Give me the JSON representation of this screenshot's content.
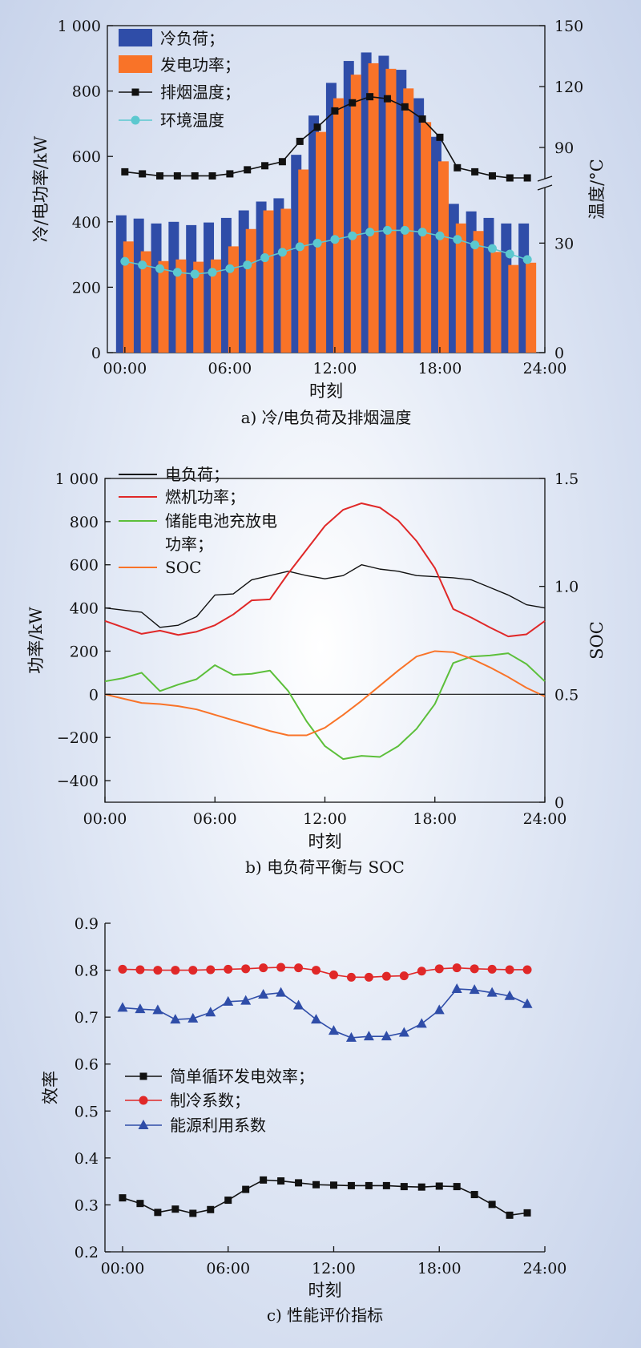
{
  "chart_data": [
    {
      "type": "bar",
      "caption": "a) 冷/电负荷及排烟温度",
      "xlabel": "时刻",
      "ylabel_left": "冷/电功率/kW",
      "ylabel_right": "温度/°C",
      "xlim": [
        -1,
        24
      ],
      "x_ticks": [
        0,
        6,
        12,
        18,
        24
      ],
      "x_tick_labels": [
        "00:00",
        "06:00",
        "12:00",
        "18:00",
        "24:00"
      ],
      "ylim_left": [
        0,
        1000
      ],
      "y_ticks_left": [
        0,
        200,
        400,
        600,
        800,
        1000
      ],
      "y_tick_labels_left": [
        "0",
        "200",
        "400",
        "600",
        "800",
        "1 000"
      ],
      "right_axis_broken": true,
      "right_axis_segments": [
        [
          0,
          45
        ],
        [
          75,
          150
        ]
      ],
      "y_ticks_right": [
        0,
        30,
        90,
        120,
        150
      ],
      "y_tick_labels_right": [
        "0",
        "30",
        "90",
        "120",
        "150"
      ],
      "hours": [
        0,
        1,
        2,
        3,
        4,
        5,
        6,
        7,
        8,
        9,
        10,
        11,
        12,
        13,
        14,
        15,
        16,
        17,
        18,
        19,
        20,
        21,
        22,
        23
      ],
      "series": [
        {
          "name": "冷负荷；",
          "kind": "bar",
          "axis": "left",
          "color": "#2f4da8",
          "values": [
            420,
            410,
            395,
            400,
            390,
            398,
            412,
            435,
            462,
            472,
            605,
            725,
            825,
            892,
            918,
            908,
            865,
            778,
            660,
            455,
            432,
            412,
            395,
            395
          ]
        },
        {
          "name": "发电功率；",
          "kind": "bar",
          "axis": "left",
          "color": "#f97328",
          "values": [
            340,
            310,
            280,
            285,
            278,
            285,
            325,
            378,
            435,
            440,
            560,
            675,
            778,
            850,
            885,
            868,
            808,
            705,
            585,
            395,
            372,
            308,
            268,
            275
          ]
        },
        {
          "name": "排烟温度；",
          "kind": "line",
          "marker": "square",
          "axis": "right",
          "color": "#111111",
          "values": [
            78,
            77,
            76,
            76,
            76,
            76,
            77,
            79,
            81,
            83,
            93,
            100,
            108,
            112,
            115,
            114,
            110,
            104,
            95,
            80,
            78,
            76,
            75,
            75
          ]
        },
        {
          "name": "环境温度",
          "kind": "line",
          "marker": "circle",
          "axis": "right",
          "color": "#5cc8cf",
          "values": [
            25,
            24,
            23,
            22,
            21.5,
            22,
            23,
            24,
            26,
            27.5,
            29,
            30,
            31,
            32,
            33,
            33.5,
            33.5,
            33,
            32,
            31,
            29.5,
            28.5,
            27,
            25.5
          ]
        }
      ]
    },
    {
      "type": "line",
      "caption": "b) 电负荷平衡与 SOC",
      "xlabel": "时刻",
      "ylabel_left": "功率/kW",
      "ylabel_right": "SOC",
      "xlim": [
        0,
        24
      ],
      "x_ticks": [
        0,
        6,
        12,
        18,
        24
      ],
      "x_tick_labels": [
        "00:00",
        "06:00",
        "12:00",
        "18:00",
        "24:00"
      ],
      "ylim_left": [
        -500,
        1000
      ],
      "y_ticks_left": [
        -400,
        -200,
        0,
        200,
        400,
        600,
        800,
        1000
      ],
      "y_tick_labels_left": [
        "−400",
        "−200",
        "0",
        "200",
        "400",
        "600",
        "800",
        "1 000"
      ],
      "ylim_right": [
        0,
        1.5
      ],
      "y_ticks_right": [
        0,
        0.5,
        1.0,
        1.5
      ],
      "y_tick_labels_right": [
        "0",
        "0.5",
        "1.0",
        "1.5"
      ],
      "series": [
        {
          "name": "电负荷；",
          "axis": "left",
          "color": "#111111",
          "x": [
            0,
            1,
            2,
            3,
            4,
            5,
            6,
            7,
            8,
            9,
            10,
            11,
            12,
            13,
            14,
            15,
            16,
            17,
            18,
            19,
            20,
            21,
            22,
            23,
            24
          ],
          "values": [
            400,
            390,
            380,
            310,
            320,
            360,
            460,
            465,
            530,
            550,
            570,
            550,
            535,
            550,
            600,
            580,
            570,
            550,
            545,
            540,
            530,
            495,
            460,
            415,
            400
          ]
        },
        {
          "name": "燃机功率；",
          "axis": "left",
          "color": "#e02828",
          "x": [
            0,
            1,
            2,
            3,
            4,
            5,
            6,
            7,
            8,
            9,
            10,
            11,
            12,
            13,
            14,
            15,
            16,
            17,
            18,
            19,
            20,
            21,
            22,
            23,
            24
          ],
          "values": [
            340,
            310,
            280,
            295,
            275,
            290,
            320,
            370,
            435,
            440,
            560,
            670,
            780,
            855,
            885,
            865,
            805,
            710,
            585,
            395,
            355,
            310,
            268,
            278,
            340
          ]
        },
        {
          "name": "储能电池充放电功率；",
          "axis": "left",
          "color": "#5cbf3a",
          "x": [
            0,
            1,
            2,
            3,
            4,
            5,
            6,
            7,
            8,
            9,
            10,
            11,
            12,
            13,
            14,
            15,
            16,
            17,
            18,
            19,
            20,
            21,
            22,
            23,
            24
          ],
          "values": [
            60,
            75,
            100,
            15,
            45,
            70,
            135,
            90,
            95,
            110,
            15,
            -125,
            -240,
            -300,
            -285,
            -290,
            -240,
            -160,
            -45,
            145,
            175,
            180,
            190,
            140,
            60
          ]
        },
        {
          "name": "SOC",
          "axis": "right",
          "color": "#f97328",
          "x": [
            0,
            1,
            2,
            3,
            4,
            5,
            6,
            7,
            8,
            9,
            10,
            11,
            12,
            13,
            14,
            15,
            16,
            17,
            18,
            19,
            20,
            21,
            22,
            23,
            24
          ],
          "values": [
            0.5,
            0.48,
            0.46,
            0.455,
            0.445,
            0.43,
            0.405,
            0.38,
            0.355,
            0.33,
            0.31,
            0.31,
            0.345,
            0.405,
            0.47,
            0.54,
            0.61,
            0.675,
            0.7,
            0.695,
            0.665,
            0.625,
            0.58,
            0.53,
            0.49
          ]
        }
      ]
    },
    {
      "type": "line",
      "caption": "c) 性能评价指标",
      "xlabel": "时刻",
      "ylabel": "效率",
      "xlim": [
        -1,
        24
      ],
      "x_ticks": [
        0,
        6,
        12,
        18,
        24
      ],
      "x_tick_labels": [
        "00:00",
        "06:00",
        "12:00",
        "18:00",
        "24:00"
      ],
      "ylim": [
        0.2,
        0.9
      ],
      "y_ticks": [
        0.2,
        0.3,
        0.4,
        0.5,
        0.6,
        0.7,
        0.8,
        0.9
      ],
      "y_tick_labels": [
        "0.2",
        "0.3",
        "0.4",
        "0.5",
        "0.6",
        "0.7",
        "0.8",
        "0.9"
      ],
      "hours": [
        0,
        1,
        2,
        3,
        4,
        5,
        6,
        7,
        8,
        9,
        10,
        11,
        12,
        13,
        14,
        15,
        16,
        17,
        18,
        19,
        20,
        21,
        22,
        23
      ],
      "series": [
        {
          "name": "简单循环发电效率；",
          "marker": "square",
          "color": "#111111",
          "values": [
            0.315,
            0.303,
            0.284,
            0.291,
            0.282,
            0.29,
            0.31,
            0.333,
            0.353,
            0.351,
            0.347,
            0.343,
            0.342,
            0.341,
            0.341,
            0.341,
            0.339,
            0.338,
            0.34,
            0.339,
            0.322,
            0.301,
            0.278,
            0.283
          ]
        },
        {
          "name": "制冷系数；",
          "marker": "circle",
          "color": "#e02828",
          "values": [
            0.802,
            0.801,
            0.8,
            0.8,
            0.8,
            0.801,
            0.802,
            0.803,
            0.805,
            0.806,
            0.805,
            0.8,
            0.79,
            0.785,
            0.785,
            0.787,
            0.788,
            0.798,
            0.803,
            0.805,
            0.803,
            0.802,
            0.801,
            0.801
          ]
        },
        {
          "name": "能源利用系数",
          "marker": "triangle",
          "color": "#2f4da8",
          "values": [
            0.72,
            0.717,
            0.715,
            0.695,
            0.697,
            0.71,
            0.733,
            0.735,
            0.748,
            0.752,
            0.725,
            0.695,
            0.671,
            0.656,
            0.659,
            0.659,
            0.667,
            0.686,
            0.715,
            0.76,
            0.758,
            0.752,
            0.745,
            0.728
          ]
        }
      ]
    }
  ]
}
